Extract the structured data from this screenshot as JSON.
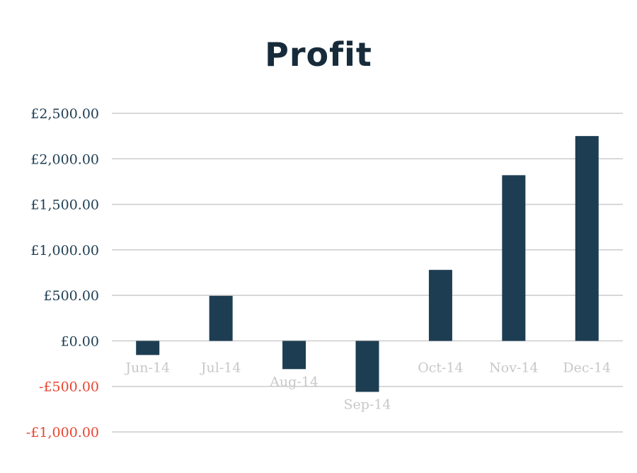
{
  "chart_data": {
    "type": "bar",
    "title": "Profit",
    "xlabel": "",
    "ylabel": "",
    "categories": [
      "Jun-14",
      "Jul-14",
      "Aug-14",
      "Sep-14",
      "Oct-14",
      "Nov-14",
      "Dec-14"
    ],
    "values": [
      -155,
      495,
      -310,
      -560,
      780,
      1820,
      2250
    ],
    "ylim": [
      -1000,
      2500
    ],
    "yticks": [
      2500,
      2000,
      1500,
      1000,
      500,
      0,
      -500,
      -1000
    ],
    "ytick_labels": [
      "£2,500.00",
      "£2,000.00",
      "£1,500.00",
      "£1,000.00",
      "£500.00",
      "£0.00",
      "-£500.00",
      "-£1,000.00"
    ],
    "grid": true,
    "legend": "none",
    "colors": {
      "bar": "#1d3d52",
      "positive_tick": "#1d3d52",
      "negative_tick": "#e8432e",
      "category_label": "#c8c8c8",
      "grid": "#cccccc"
    }
  }
}
